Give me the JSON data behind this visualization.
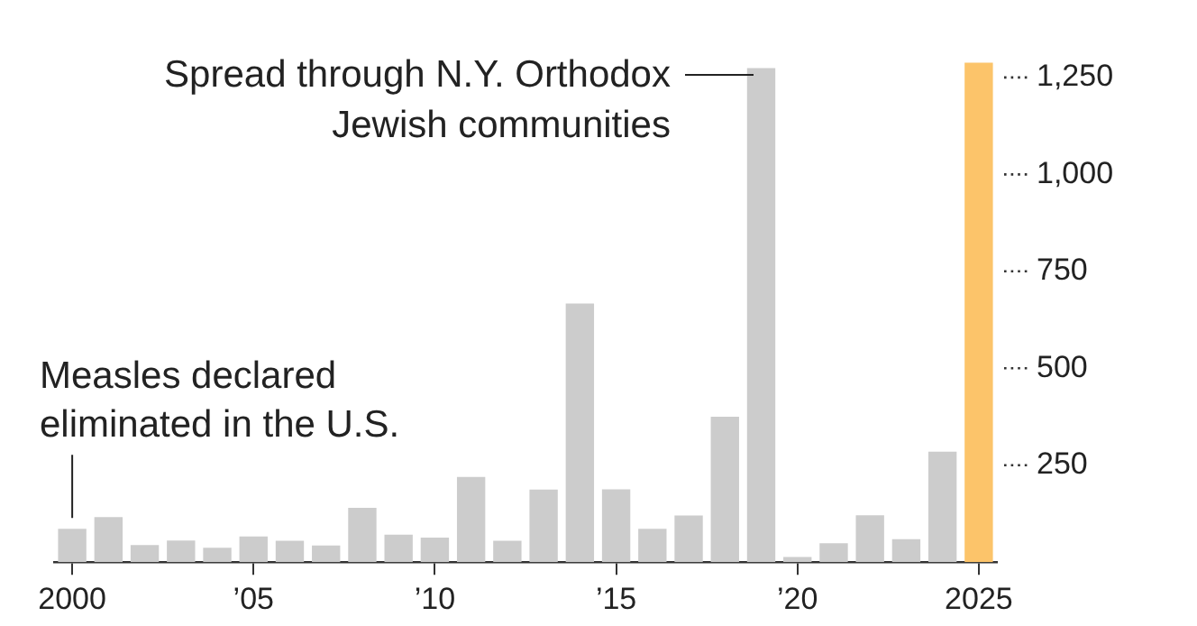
{
  "chart_data": {
    "type": "bar",
    "categories": [
      "2000",
      null,
      null,
      null,
      null,
      "’05",
      null,
      null,
      null,
      null,
      "’10",
      null,
      null,
      null,
      null,
      "’15",
      null,
      null,
      null,
      null,
      "’20",
      null,
      null,
      null,
      null,
      "2025"
    ],
    "values": [
      86,
      116,
      44,
      56,
      37,
      66,
      55,
      43,
      140,
      71,
      63,
      220,
      55,
      187,
      667,
      188,
      86,
      120,
      375,
      1274,
      13,
      49,
      121,
      59,
      285,
      1288
    ],
    "colors": [
      "#cccccc",
      "#cccccc",
      "#cccccc",
      "#cccccc",
      "#cccccc",
      "#cccccc",
      "#cccccc",
      "#cccccc",
      "#cccccc",
      "#cccccc",
      "#cccccc",
      "#cccccc",
      "#cccccc",
      "#cccccc",
      "#cccccc",
      "#cccccc",
      "#cccccc",
      "#cccccc",
      "#cccccc",
      "#cccccc",
      "#cccccc",
      "#cccccc",
      "#cccccc",
      "#cccccc",
      "#cccccc",
      "#fcc46a"
    ],
    "ylim": [
      0,
      1300
    ],
    "yticks": [
      {
        "value": 250,
        "label": "250"
      },
      {
        "value": 500,
        "label": "500"
      },
      {
        "value": 750,
        "label": "750"
      },
      {
        "value": 1000,
        "label": "1,000"
      },
      {
        "value": 1250,
        "label": "1,250"
      }
    ],
    "grid": false,
    "legend": false,
    "annotations": [
      "Spread through N.Y. Orthodox Jewish communities",
      {
        "text": "Measles declared eliminated in the U.S.",
        "x": "2000",
        "y": 86
      }
    ]
  }
}
